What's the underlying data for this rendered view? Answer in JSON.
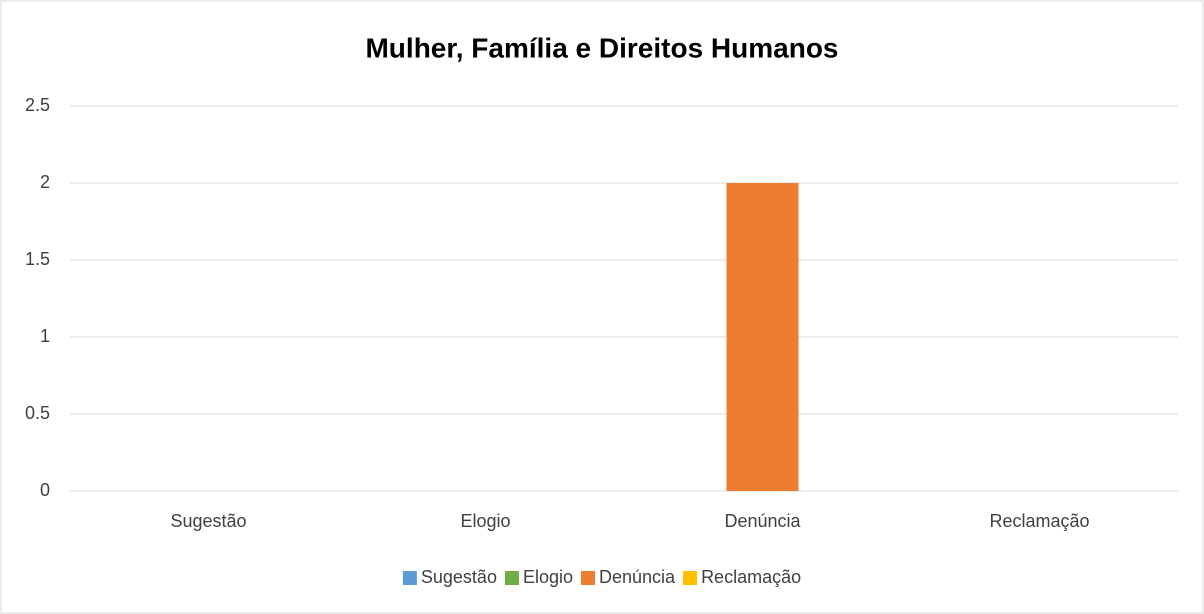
{
  "chart_data": {
    "type": "bar",
    "title": "Mulher, Família e Direitos Humanos",
    "categories": [
      "Sugestão",
      "Elogio",
      "Denúncia",
      "Reclamação"
    ],
    "values": [
      0,
      0,
      2,
      0
    ],
    "colors": [
      "#5b9bd5",
      "#70ad47",
      "#ed7d31",
      "#ffc000"
    ],
    "ylim": [
      0,
      2.5
    ],
    "yticks": [
      0,
      0.5,
      1,
      1.5,
      2,
      2.5
    ],
    "grid": true,
    "legend": "bottom"
  }
}
